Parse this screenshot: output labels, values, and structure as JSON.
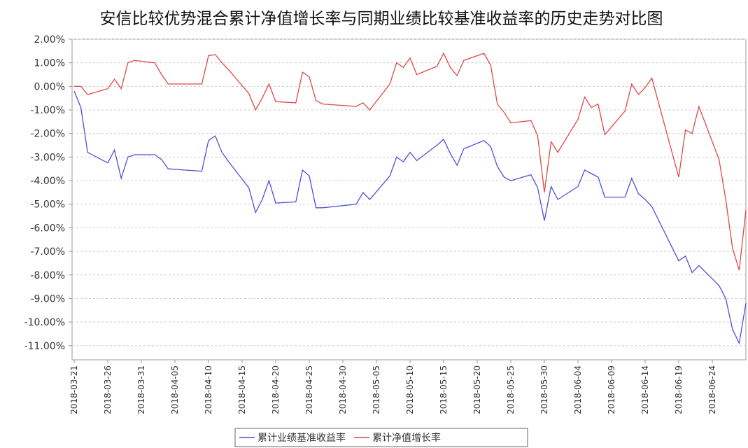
{
  "chart_data": {
    "type": "line",
    "title": "安信比较优势混合累计净值增长率与同期业绩比较基准收益率的历史走势对比图",
    "x": [
      "2018-03-21",
      "2018-03-22",
      "2018-03-23",
      "2018-03-26",
      "2018-03-27",
      "2018-03-28",
      "2018-03-29",
      "2018-03-30",
      "2018-04-02",
      "2018-04-03",
      "2018-04-04",
      "2018-04-09",
      "2018-04-10",
      "2018-04-11",
      "2018-04-12",
      "2018-04-13",
      "2018-04-16",
      "2018-04-17",
      "2018-04-18",
      "2018-04-19",
      "2018-04-20",
      "2018-04-23",
      "2018-04-24",
      "2018-04-25",
      "2018-04-26",
      "2018-04-27",
      "2018-05-02",
      "2018-05-03",
      "2018-05-04",
      "2018-05-07",
      "2018-05-08",
      "2018-05-09",
      "2018-05-10",
      "2018-05-11",
      "2018-05-14",
      "2018-05-15",
      "2018-05-16",
      "2018-05-17",
      "2018-05-18",
      "2018-05-21",
      "2018-05-22",
      "2018-05-23",
      "2018-05-24",
      "2018-05-25",
      "2018-05-28",
      "2018-05-29",
      "2018-05-30",
      "2018-05-31",
      "2018-06-01",
      "2018-06-04",
      "2018-06-05",
      "2018-06-06",
      "2018-06-07",
      "2018-06-08",
      "2018-06-11",
      "2018-06-12",
      "2018-06-13",
      "2018-06-14",
      "2018-06-15",
      "2018-06-19",
      "2018-06-20",
      "2018-06-21",
      "2018-06-22",
      "2018-06-25",
      "2018-06-26",
      "2018-06-27",
      "2018-06-28",
      "2018-06-29"
    ],
    "series": [
      {
        "name": "累计业绩基准收益率",
        "color": "#4f4fd9",
        "values": [
          -0.2,
          -0.9,
          -2.8,
          -3.25,
          -2.7,
          -3.9,
          -3.0,
          -2.9,
          -2.9,
          -3.1,
          -3.5,
          -3.6,
          -2.3,
          -2.1,
          -2.8,
          -3.2,
          -4.3,
          -5.35,
          -4.8,
          -4.0,
          -4.95,
          -4.9,
          -3.55,
          -3.8,
          -5.15,
          -5.15,
          -5.0,
          -4.5,
          -4.8,
          -3.8,
          -3.0,
          -3.2,
          -2.8,
          -3.15,
          -2.5,
          -2.25,
          -2.85,
          -3.35,
          -2.65,
          -2.3,
          -2.55,
          -3.4,
          -3.85,
          -4.0,
          -3.75,
          -4.3,
          -5.7,
          -4.25,
          -4.8,
          -4.25,
          -3.55,
          -3.7,
          -3.85,
          -4.7,
          -4.7,
          -3.9,
          -4.55,
          -4.8,
          -5.1,
          -7.4,
          -7.2,
          -7.9,
          -7.6,
          -8.45,
          -9.0,
          -10.3,
          -10.9,
          -9.2
        ]
      },
      {
        "name": "累计净值增长率",
        "color": "#e04848",
        "values": [
          0,
          0,
          -0.35,
          -0.1,
          0.3,
          -0.1,
          1.0,
          1.1,
          1.0,
          0.5,
          0.1,
          0.1,
          1.3,
          1.35,
          1.0,
          0.7,
          -0.3,
          -1.0,
          -0.5,
          0.1,
          -0.65,
          -0.7,
          0.6,
          0.4,
          -0.6,
          -0.75,
          -0.85,
          -0.7,
          -1.0,
          0.1,
          1.0,
          0.8,
          1.2,
          0.5,
          0.85,
          1.4,
          0.8,
          0.45,
          1.1,
          1.4,
          0.9,
          -0.75,
          -1.1,
          -1.55,
          -1.45,
          -2.1,
          -4.5,
          -2.35,
          -2.8,
          -1.4,
          -0.45,
          -0.9,
          -0.75,
          -2.05,
          -1.05,
          0.1,
          -0.35,
          -0.05,
          0.35,
          -3.85,
          -1.85,
          -2.0,
          -0.85,
          -3.1,
          -4.8,
          -6.85,
          -7.8,
          -5.25
        ]
      }
    ],
    "xlim": [
      "2018-03-21",
      "2018-06-29"
    ],
    "xticks": [
      "2018-03-21",
      "2018-03-26",
      "2018-03-31",
      "2018-04-05",
      "2018-04-10",
      "2018-04-15",
      "2018-04-20",
      "2018-04-25",
      "2018-04-30",
      "2018-05-05",
      "2018-05-10",
      "2018-05-15",
      "2018-05-20",
      "2018-05-25",
      "2018-05-30",
      "2018-06-04",
      "2018-06-09",
      "2018-06-14",
      "2018-06-19",
      "2018-06-24"
    ],
    "ylim": [
      -11.6,
      2.0
    ],
    "yticks": [
      {
        "value": 2,
        "label": "2.00%"
      },
      {
        "value": 1,
        "label": "1.00%"
      },
      {
        "value": 0,
        "label": "0.00%"
      },
      {
        "value": -1,
        "label": "-1.00%"
      },
      {
        "value": -2,
        "label": "-2.00%"
      },
      {
        "value": -3,
        "label": "-3.00%"
      },
      {
        "value": -4,
        "label": "-4.00%"
      },
      {
        "value": -5,
        "label": "-5.00%"
      },
      {
        "value": -6,
        "label": "-6.00%"
      },
      {
        "value": -7,
        "label": "-7.00%"
      },
      {
        "value": -8,
        "label": "-8.00%"
      },
      {
        "value": -9,
        "label": "-9.00%"
      },
      {
        "value": -10,
        "label": "-10.00%"
      },
      {
        "value": -11,
        "label": "-11.00%"
      }
    ],
    "grid": true
  }
}
